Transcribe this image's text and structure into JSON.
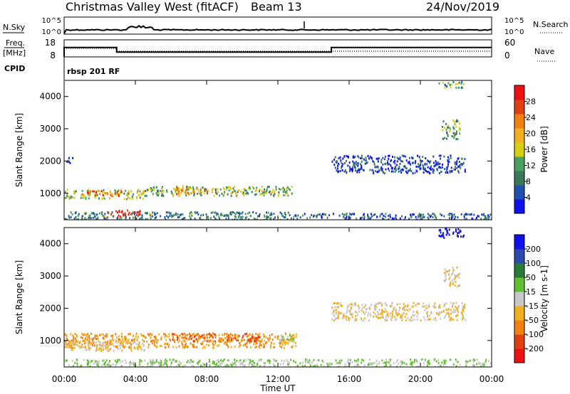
{
  "header": {
    "title": "Christmas Valley West (fitACF)",
    "beam": "Beam 13",
    "date": "24/Nov/2019"
  },
  "noise_panel": {
    "left_label": "N.Sky",
    "right_label": "N.Search",
    "left_ticks": [
      "10^5",
      "10^0"
    ],
    "right_ticks": [
      "10^5",
      "10^0"
    ]
  },
  "freq_panel": {
    "label_line1": "Freq.",
    "label_line2": "[MHz]",
    "left_ticks": [
      "18",
      "8"
    ],
    "right_ticks": [
      "60",
      "0"
    ],
    "right_label": "Nave",
    "cpid_label": "CPID",
    "cpid_value": "rbsp 201 RF"
  },
  "colors": {
    "power_scale": [
      "#1010ee",
      "#2050b0",
      "#3a7a5a",
      "#4aa060",
      "#d6d010",
      "#f0b020",
      "#f08010",
      "#e04010",
      "#ee1010"
    ],
    "velocity_scale": [
      "#ee1010",
      "#e04010",
      "#f08010",
      "#f0b020",
      "#c8c8c8",
      "#60c030",
      "#2a7a3a",
      "#2a4ab0",
      "#1010ee"
    ]
  },
  "power_panel": {
    "ylabel": "Slant Range [km]",
    "yticks": [
      "4000",
      "3000",
      "2000",
      "1000"
    ],
    "colorbar_label": "Power [dB]",
    "colorbar_ticks": [
      "28",
      "24",
      "20",
      "16",
      "12",
      "8",
      "4"
    ]
  },
  "velocity_panel": {
    "ylabel": "Slant Range [km]",
    "yticks": [
      "4000",
      "3000",
      "2000",
      "1000"
    ],
    "colorbar_label": "Velocity [m s-1]",
    "colorbar_ticks": [
      "200",
      "100",
      "50",
      "15",
      "-15",
      "-50",
      "-100",
      "-200"
    ]
  },
  "x_axis": {
    "label": "Time UT",
    "ticks": [
      "00:00",
      "04:00",
      "08:00",
      "12:00",
      "16:00",
      "20:00",
      "00:00"
    ]
  },
  "chart_data": {
    "type": "heatmap",
    "title": "Christmas Valley West (fitACF)",
    "xlabel": "Time UT",
    "ylabel": "Slant Range [km]",
    "xlim_hours": [
      0,
      24
    ],
    "ylim_km": [
      180,
      4500
    ],
    "freq_steps_mhz": [
      {
        "from": 0,
        "to": 2.95,
        "value": 13.5
      },
      {
        "from": 2.95,
        "to": 15.0,
        "value": 10.8
      },
      {
        "from": 15.0,
        "to": 24,
        "value": 13.5
      }
    ],
    "nave_steps": [
      {
        "from": 0,
        "to": 2.95,
        "value": 30
      },
      {
        "from": 2.95,
        "to": 15.0,
        "value": 20
      },
      {
        "from": 15.0,
        "to": 24,
        "value": 20
      }
    ],
    "power_regions": [
      {
        "t0": 0.0,
        "t1": 4.5,
        "r0": 850,
        "r1": 1150,
        "power": 16
      },
      {
        "t0": 1.0,
        "t1": 3.2,
        "r0": 950,
        "r1": 1100,
        "power": 24
      },
      {
        "t0": 4.5,
        "t1": 13.0,
        "r0": 950,
        "r1": 1250,
        "power": 14
      },
      {
        "t0": 6.0,
        "t1": 8.0,
        "r0": 1000,
        "r1": 1200,
        "power": 22
      },
      {
        "t0": 2.4,
        "t1": 4.6,
        "r0": 280,
        "r1": 500,
        "power": 28
      },
      {
        "t0": 0.0,
        "t1": 13.0,
        "r0": 200,
        "r1": 450,
        "power": 10
      },
      {
        "t0": 13.0,
        "t1": 24.0,
        "r0": 200,
        "r1": 400,
        "power": 8
      },
      {
        "t0": 15.0,
        "t1": 22.5,
        "r0": 1650,
        "r1": 2200,
        "power": 6
      },
      {
        "t0": 21.2,
        "t1": 22.2,
        "r0": 2700,
        "r1": 3300,
        "power": 12
      },
      {
        "t0": 21.0,
        "t1": 22.4,
        "r0": 4300,
        "r1": 4500,
        "power": 12
      },
      {
        "t0": 0.1,
        "t1": 0.5,
        "r0": 1950,
        "r1": 2200,
        "power": 6
      }
    ],
    "velocity_regions": [
      {
        "t0": 0.0,
        "t1": 13.0,
        "r0": 800,
        "r1": 1250,
        "velocity": -50
      },
      {
        "t0": 0.0,
        "t1": 4.5,
        "r0": 700,
        "r1": 1000,
        "velocity": -15
      },
      {
        "t0": 6.0,
        "t1": 11.0,
        "r0": 1000,
        "r1": 1250,
        "velocity": -100
      },
      {
        "t0": 12.0,
        "t1": 13.0,
        "r0": 1000,
        "r1": 1200,
        "velocity": 20
      },
      {
        "t0": 0.0,
        "t1": 24.0,
        "r0": 200,
        "r1": 450,
        "velocity": 15
      },
      {
        "t0": 15.0,
        "t1": 22.5,
        "r0": 1650,
        "r1": 2200,
        "velocity": -15
      },
      {
        "t0": 21.0,
        "t1": 22.4,
        "r0": 4200,
        "r1": 4500,
        "velocity": 250
      },
      {
        "t0": 21.3,
        "t1": 22.2,
        "r0": 2700,
        "r1": 3300,
        "velocity": -15
      }
    ]
  }
}
